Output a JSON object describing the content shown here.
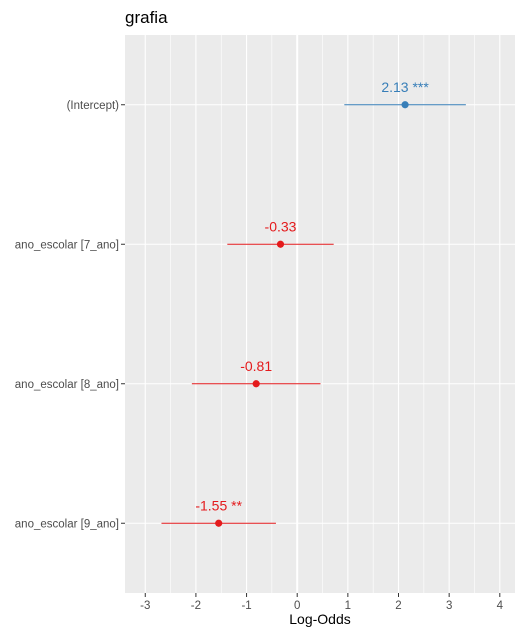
{
  "chart_data": {
    "type": "forest",
    "title": "grafia",
    "xlabel": "Log-Odds",
    "ylabel": "",
    "xlim": [
      -3.4,
      4.3
    ],
    "x_ticks": [
      -3,
      -2,
      -1,
      0,
      1,
      2,
      3,
      4
    ],
    "x_tick_labels": [
      "-3",
      "-2",
      "-1",
      "0",
      "1",
      "2",
      "3",
      "4"
    ],
    "grid": true,
    "reference_line": 0,
    "colors": {
      "positive": "#377eb8",
      "negative": "#e41a1c",
      "panel": "#ebebeb",
      "grid": "#ffffff"
    },
    "terms": [
      {
        "term": "(Intercept)",
        "estimate": 2.13,
        "ci_low": 0.93,
        "ci_high": 3.33,
        "label": "2.13 ***"
      },
      {
        "term": "ano_escolar [7_ano]",
        "estimate": -0.33,
        "ci_low": -1.38,
        "ci_high": 0.72,
        "label": "-0.33"
      },
      {
        "term": "ano_escolar [8_ano]",
        "estimate": -0.81,
        "ci_low": -2.08,
        "ci_high": 0.46,
        "label": "-0.81"
      },
      {
        "term": "ano_escolar [9_ano]",
        "estimate": -1.55,
        "ci_low": -2.68,
        "ci_high": -0.42,
        "label": "-1.55 **"
      }
    ]
  }
}
